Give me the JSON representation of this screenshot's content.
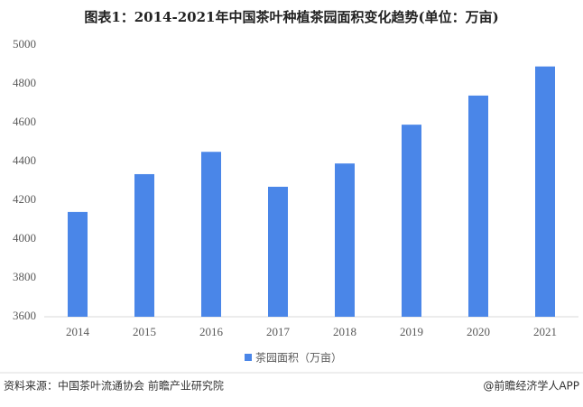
{
  "chart_data": {
    "type": "bar",
    "title": "图表1：2014-2021年中国茶叶种植茶园面积变化趋势(单位：万亩)",
    "categories": [
      "2014",
      "2015",
      "2016",
      "2017",
      "2018",
      "2019",
      "2020",
      "2021"
    ],
    "series": [
      {
        "name": "茶园面积（万亩）",
        "color": "#4a86e8",
        "values": [
          4140,
          4335,
          4450,
          4270,
          4390,
          4590,
          4740,
          4890
        ]
      }
    ],
    "ylim": [
      3600,
      5000
    ],
    "yticks": [
      3600,
      3800,
      4000,
      4200,
      4400,
      4600,
      4800,
      5000
    ],
    "grid": false,
    "legend": "bottom",
    "source": "资料来源：中国茶叶流通协会 前瞻产业研究院",
    "credit": "@前瞻经济学人APP"
  }
}
